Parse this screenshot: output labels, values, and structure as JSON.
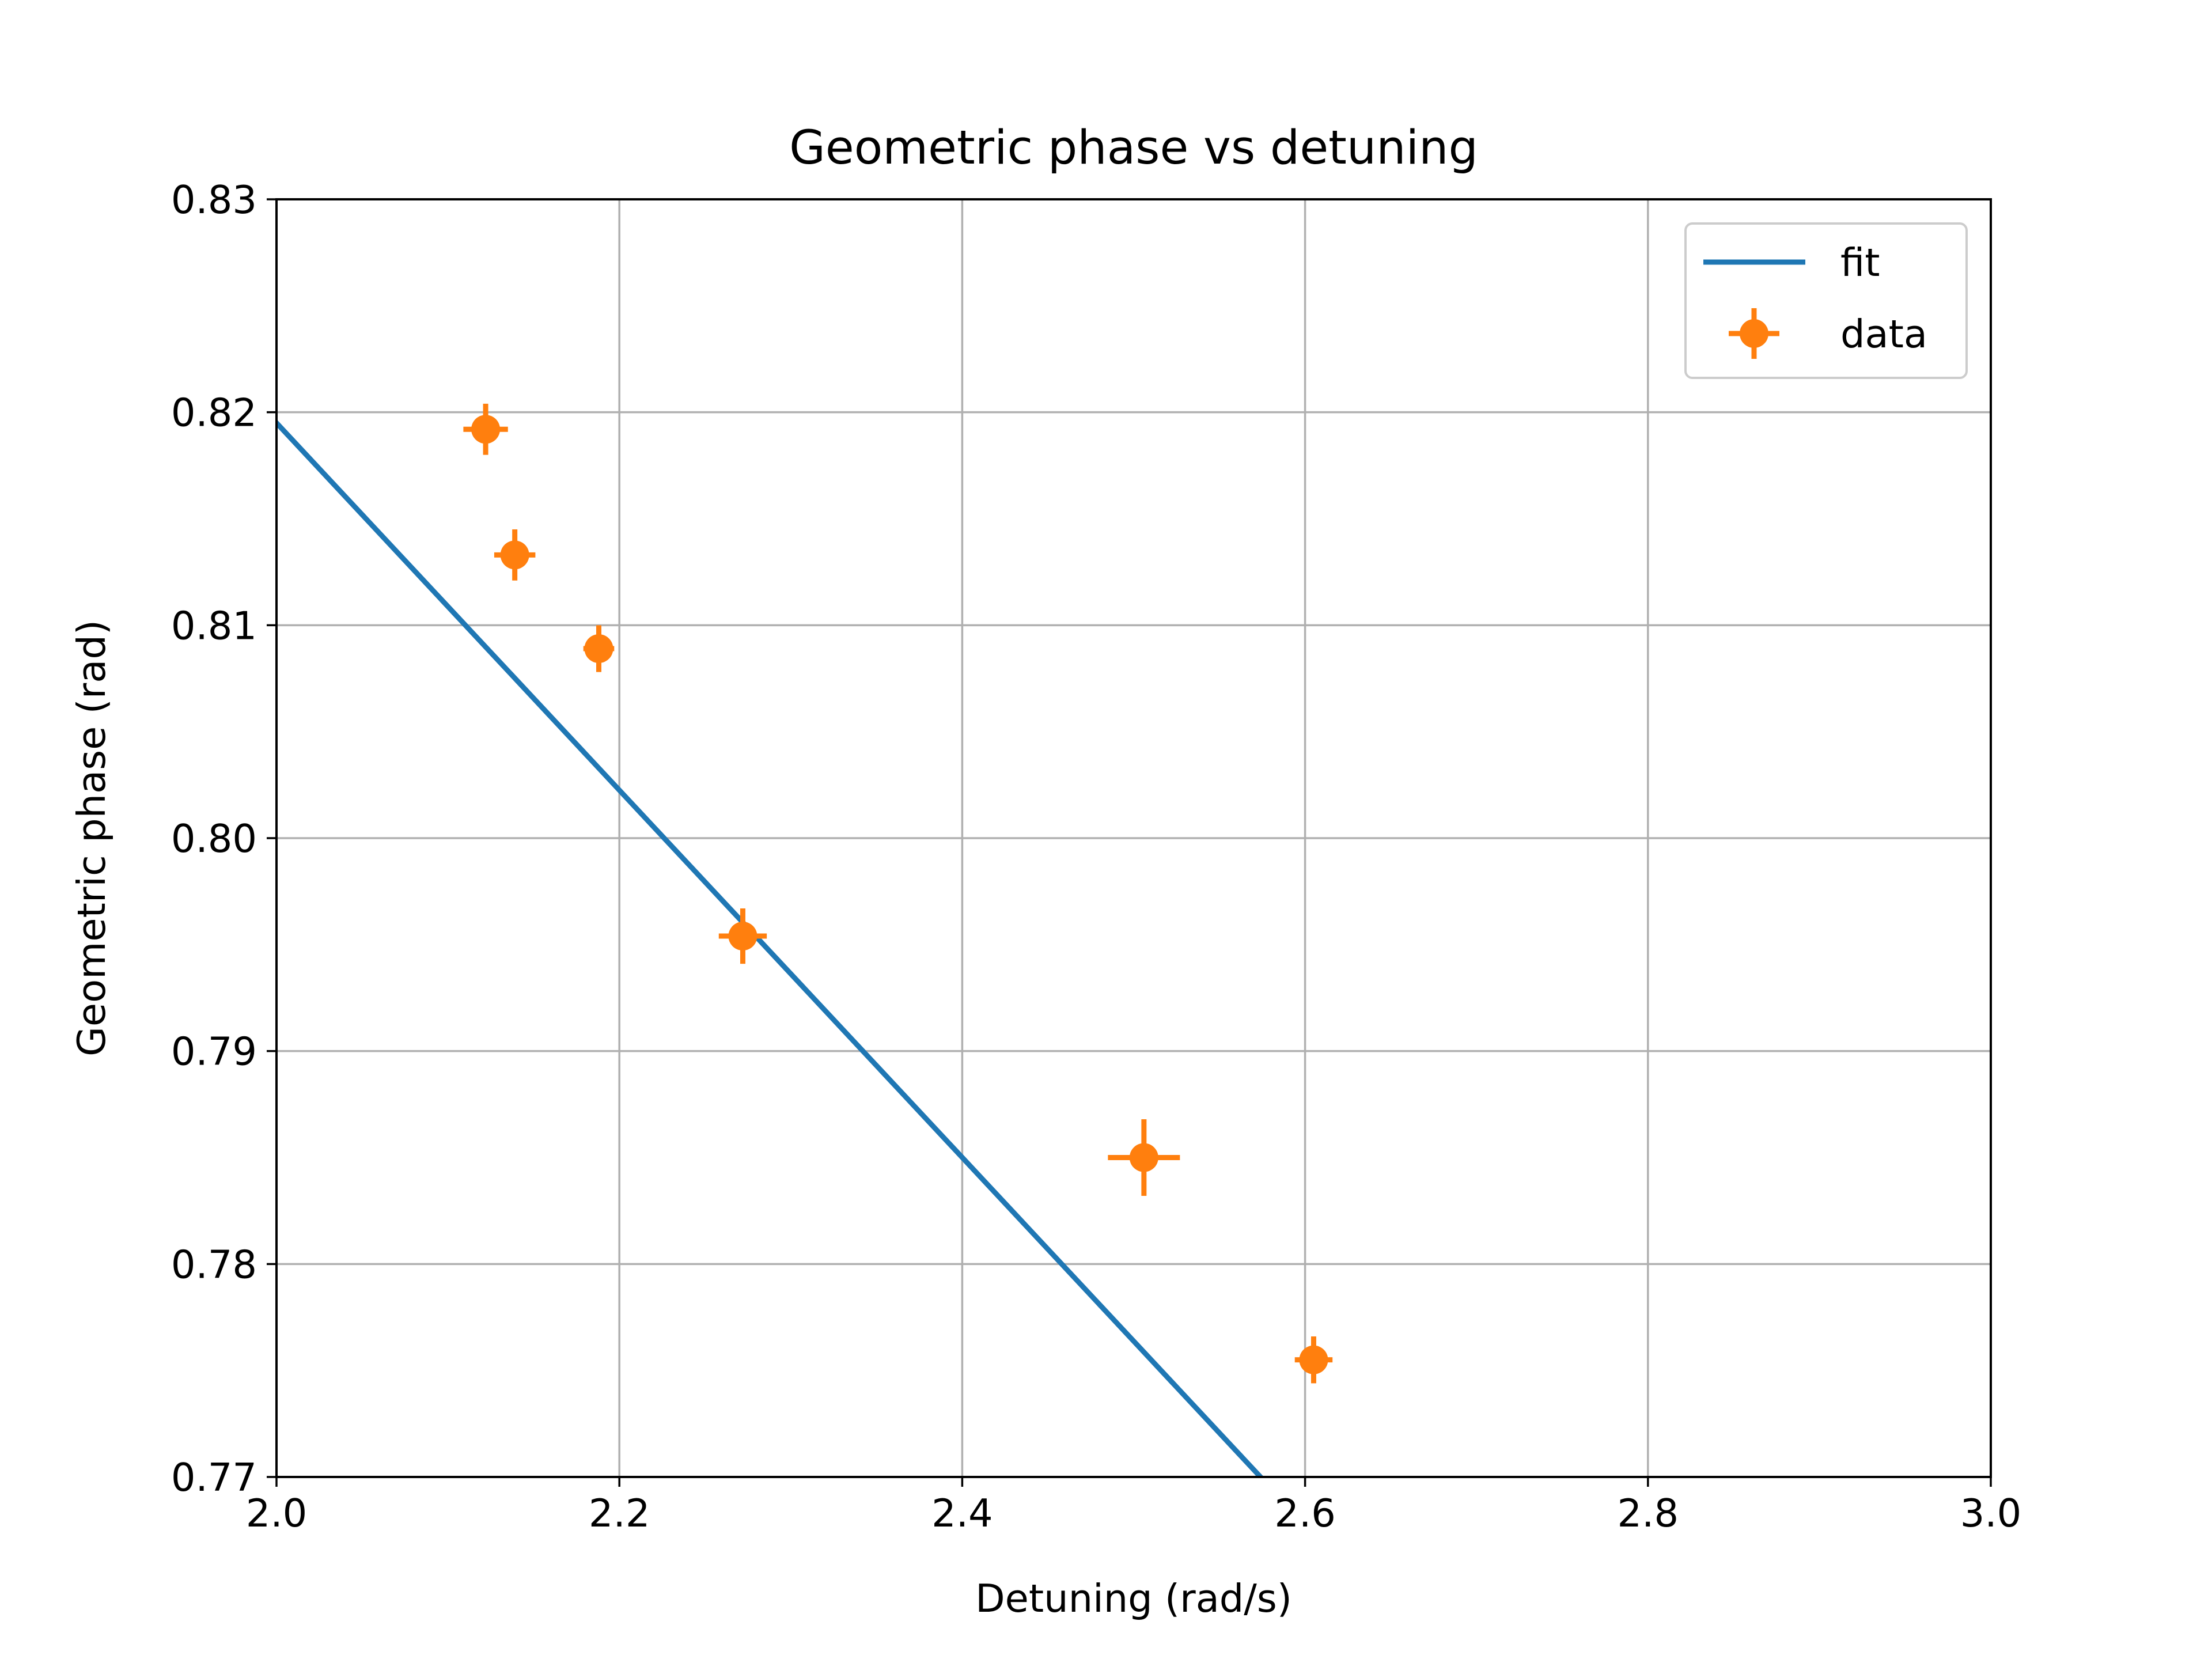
{
  "chart_data": {
    "type": "scatter",
    "title": "Geometric phase vs detuning",
    "xlabel": "Detuning (rad/s)",
    "ylabel": "Geometric phase (rad)",
    "xlim": [
      2.0,
      3.0
    ],
    "ylim": [
      0.77,
      0.83
    ],
    "xticks": [
      "2.0",
      "2.2",
      "2.4",
      "2.6",
      "2.8",
      "3.0"
    ],
    "yticks": [
      "0.77",
      "0.78",
      "0.79",
      "0.80",
      "0.81",
      "0.82",
      "0.83"
    ],
    "grid": true,
    "legend_position": "top-right",
    "series": [
      {
        "name": "fit",
        "kind": "line",
        "color": "#1f77b4",
        "x": [
          2.0,
          2.574
        ],
        "y": [
          0.8195,
          0.77
        ]
      },
      {
        "name": "data",
        "kind": "errorbar",
        "color": "#ff7f0e",
        "points": [
          {
            "x": 2.122,
            "y": 0.8192,
            "xerr": 0.013,
            "yerr": 0.0012
          },
          {
            "x": 2.139,
            "y": 0.8133,
            "xerr": 0.012,
            "yerr": 0.0012
          },
          {
            "x": 2.188,
            "y": 0.8089,
            "xerr": 0.009,
            "yerr": 0.0011
          },
          {
            "x": 2.272,
            "y": 0.7954,
            "xerr": 0.014,
            "yerr": 0.0013
          },
          {
            "x": 2.506,
            "y": 0.785,
            "xerr": 0.021,
            "yerr": 0.0018
          },
          {
            "x": 2.605,
            "y": 0.7755,
            "xerr": 0.011,
            "yerr": 0.0011
          }
        ]
      }
    ]
  }
}
